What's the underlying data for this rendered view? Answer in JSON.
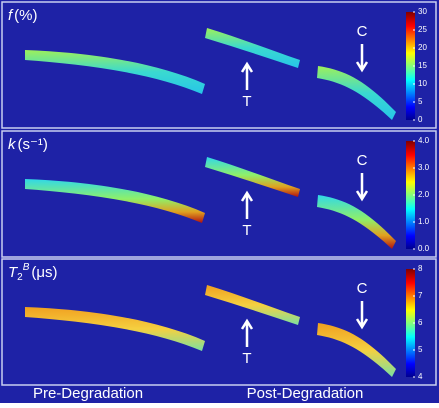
{
  "panels": [
    {
      "symbol": "f",
      "unit": "(%)",
      "colorbar": {
        "lim": [
          0,
          30
        ],
        "ticks": [
          0,
          5,
          10,
          15,
          20,
          25,
          30
        ]
      },
      "annotations": [
        "T",
        "C"
      ]
    },
    {
      "symbol": "k",
      "unit": "(s⁻¹)",
      "colorbar": {
        "lim": [
          0,
          4
        ],
        "ticks": [
          {
            "value": 0,
            "label": "0.0"
          },
          {
            "value": 1,
            "label": "1.0"
          },
          {
            "value": 2,
            "label": "2.0"
          },
          {
            "value": 3,
            "label": "3.0"
          },
          {
            "value": 4,
            "label": "4.0"
          }
        ]
      },
      "annotations": [
        "T",
        "C"
      ]
    },
    {
      "symbol": "T",
      "subscript": "2",
      "superscript": "B",
      "unit": "(μs)",
      "colorbar": {
        "lim": [
          4,
          8
        ],
        "ticks": [
          4,
          5,
          6,
          7,
          8
        ]
      },
      "annotations": [
        "T",
        "C"
      ]
    }
  ],
  "footer": {
    "left": "Pre-Degradation",
    "right": "Post-Degradation"
  }
}
